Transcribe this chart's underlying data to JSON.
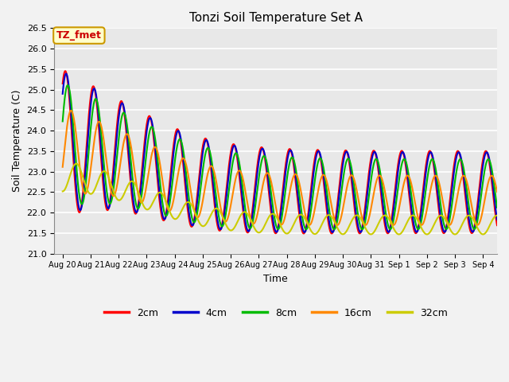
{
  "title": "Tonzi Soil Temperature Set A",
  "xlabel": "Time",
  "ylabel": "Soil Temperature (C)",
  "ylim": [
    21.0,
    26.5
  ],
  "annotation_text": "TZ_fmet",
  "annotation_color": "#cc0000",
  "annotation_bg": "#ffffcc",
  "annotation_border": "#cc9900",
  "legend_entries": [
    "2cm",
    "4cm",
    "8cm",
    "16cm",
    "32cm"
  ],
  "legend_colors": [
    "#ff0000",
    "#0000cc",
    "#00bb00",
    "#ff8800",
    "#cccc00"
  ],
  "plot_bg_color": "#e8e8e8",
  "fig_bg_color": "#f2f2f2",
  "grid_color": "#ffffff",
  "x_tick_labels": [
    "Aug 20",
    "Aug 21",
    "Aug 22",
    "Aug 23",
    "Aug 24",
    "Aug 25",
    "Aug 26",
    "Aug 27",
    "Aug 28",
    "Aug 29",
    "Aug 30",
    "Aug 31",
    "Sep 1",
    "Sep 2",
    "Sep 3",
    "Sep 4"
  ],
  "n_points": 4000
}
